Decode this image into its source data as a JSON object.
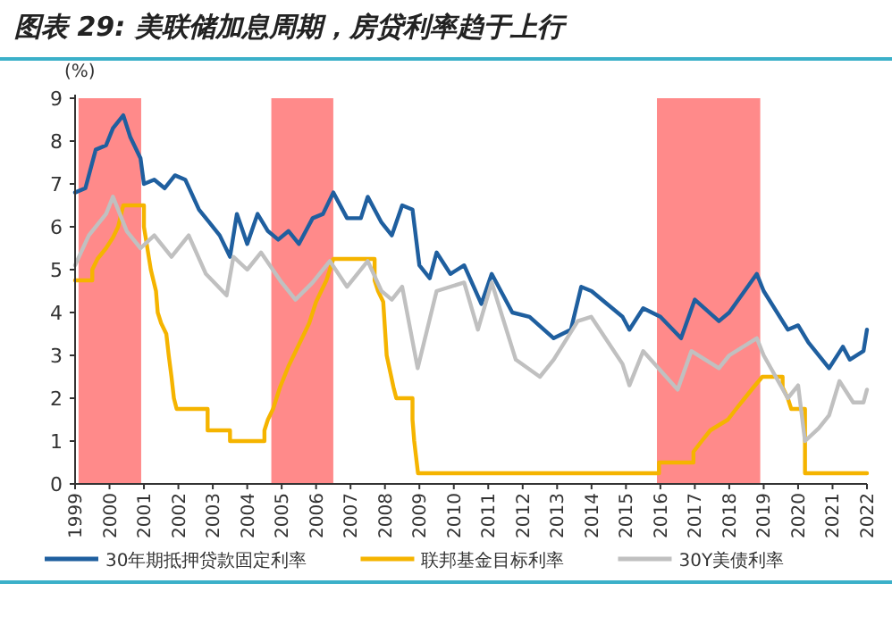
{
  "chart_data": {
    "type": "line",
    "title": "图表 29: 美联储加息周期，房贷利率趋于上行",
    "ylabel": "(%)",
    "xlim": [
      1999,
      2022
    ],
    "xticks": [
      1999,
      2000,
      2001,
      2002,
      2003,
      2004,
      2005,
      2006,
      2007,
      2008,
      2009,
      2010,
      2011,
      2012,
      2013,
      2014,
      2015,
      2016,
      2017,
      2018,
      2019,
      2020,
      2021,
      2022
    ],
    "ylim": [
      0,
      9
    ],
    "yticks": [
      0,
      1,
      2,
      3,
      4,
      5,
      6,
      7,
      8,
      9
    ],
    "grid": false,
    "legend": "bottom",
    "marker": "none",
    "bands": [
      {
        "axis": "x",
        "from": 1999.1,
        "to": 2000.92,
        "color": "#ff8a8a"
      },
      {
        "axis": "x",
        "from": 2004.7,
        "to": 2006.5,
        "color": "#ff8a8a"
      },
      {
        "axis": "x",
        "from": 2015.9,
        "to": 2018.9,
        "color": "#ff8a8a"
      }
    ],
    "series": [
      {
        "name": "30年期抵押贷款固定利率",
        "color": "#1f5f9f",
        "x": [
          1999.0,
          1999.3,
          1999.6,
          1999.9,
          2000.1,
          2000.4,
          2000.6,
          2000.9,
          2001.0,
          2001.3,
          2001.6,
          2001.9,
          2002.2,
          2002.6,
          2002.9,
          2003.2,
          2003.5,
          2003.7,
          2004.0,
          2004.3,
          2004.6,
          2004.9,
          2005.2,
          2005.5,
          2005.9,
          2006.2,
          2006.5,
          2006.9,
          2007.3,
          2007.5,
          2007.9,
          2008.2,
          2008.5,
          2008.8,
          2009.0,
          2009.3,
          2009.5,
          2009.9,
          2010.3,
          2010.8,
          2011.1,
          2011.7,
          2012.2,
          2012.9,
          2013.4,
          2013.7,
          2014.0,
          2014.9,
          2015.1,
          2015.5,
          2016.0,
          2016.6,
          2017.0,
          2017.7,
          2018.0,
          2018.8,
          2019.0,
          2019.7,
          2020.0,
          2020.3,
          2020.9,
          2021.3,
          2021.5,
          2021.9,
          2022.0
        ],
        "values": [
          6.8,
          6.9,
          7.8,
          7.9,
          8.3,
          8.6,
          8.1,
          7.6,
          7.0,
          7.1,
          6.9,
          7.2,
          7.1,
          6.4,
          6.1,
          5.8,
          5.3,
          6.3,
          5.6,
          6.3,
          5.9,
          5.7,
          5.9,
          5.6,
          6.2,
          6.3,
          6.8,
          6.2,
          6.2,
          6.7,
          6.1,
          5.8,
          6.5,
          6.4,
          5.1,
          4.8,
          5.4,
          4.9,
          5.1,
          4.2,
          4.9,
          4.0,
          3.9,
          3.4,
          3.6,
          4.6,
          4.5,
          3.9,
          3.6,
          4.1,
          3.9,
          3.4,
          4.3,
          3.8,
          4.0,
          4.9,
          4.5,
          3.6,
          3.7,
          3.3,
          2.7,
          3.2,
          2.9,
          3.1,
          3.6
        ]
      },
      {
        "name": "联邦基金目标利率",
        "color": "#f5b400",
        "x": [
          1999.0,
          1999.5,
          1999.5,
          1999.65,
          1999.9,
          2000.1,
          2000.25,
          2000.4,
          2001.0,
          2001.0,
          2001.1,
          2001.2,
          2001.35,
          2001.4,
          2001.5,
          2001.65,
          2001.72,
          2001.8,
          2001.87,
          2001.95,
          2002.85,
          2002.85,
          2003.5,
          2003.5,
          2004.5,
          2004.5,
          2004.6,
          2004.75,
          2004.95,
          2005.2,
          2005.5,
          2005.8,
          2006.0,
          2006.3,
          2006.5,
          2007.7,
          2007.7,
          2007.8,
          2007.95,
          2008.05,
          2008.25,
          2008.33,
          2008.8,
          2008.8,
          2008.85,
          2008.96,
          2015.96,
          2015.96,
          2016.96,
          2016.96,
          2017.2,
          2017.45,
          2017.96,
          2018.2,
          2018.45,
          2018.7,
          2018.96,
          2019.55,
          2019.55,
          2019.7,
          2019.8,
          2020.2,
          2020.2,
          2022.0
        ],
        "values": [
          4.75,
          4.75,
          5.0,
          5.25,
          5.5,
          5.75,
          6.0,
          6.5,
          6.5,
          6.0,
          5.5,
          5.0,
          4.5,
          4.0,
          3.75,
          3.5,
          3.0,
          2.5,
          2.0,
          1.75,
          1.75,
          1.25,
          1.25,
          1.0,
          1.0,
          1.25,
          1.5,
          1.75,
          2.25,
          2.75,
          3.25,
          3.75,
          4.25,
          4.75,
          5.25,
          5.25,
          4.75,
          4.5,
          4.25,
          3.0,
          2.25,
          2.0,
          2.0,
          1.5,
          1.0,
          0.25,
          0.25,
          0.5,
          0.5,
          0.75,
          1.0,
          1.25,
          1.5,
          1.75,
          2.0,
          2.25,
          2.5,
          2.5,
          2.25,
          2.0,
          1.75,
          1.75,
          0.25,
          0.25
        ]
      },
      {
        "name": "30Y美债利率",
        "color": "#c0c0c0",
        "x": [
          1999.0,
          1999.4,
          1999.9,
          2000.1,
          2000.5,
          2000.9,
          2001.3,
          2001.8,
          2002.3,
          2002.8,
          2003.4,
          2003.6,
          2004.0,
          2004.4,
          2005.0,
          2005.4,
          2005.9,
          2006.4,
          2006.9,
          2007.5,
          2007.9,
          2008.2,
          2008.5,
          2008.95,
          2009.5,
          2010.3,
          2010.7,
          2011.1,
          2011.8,
          2012.5,
          2012.9,
          2013.6,
          2013.99,
          2014.9,
          2015.1,
          2015.5,
          2016.5,
          2016.9,
          2017.7,
          2018.0,
          2018.8,
          2019.0,
          2019.7,
          2020.0,
          2020.2,
          2020.6,
          2020.9,
          2021.2,
          2021.6,
          2021.9,
          2022.0
        ],
        "values": [
          5.1,
          5.8,
          6.3,
          6.7,
          5.9,
          5.5,
          5.8,
          5.3,
          5.8,
          4.9,
          4.4,
          5.3,
          5.0,
          5.4,
          4.7,
          4.3,
          4.7,
          5.2,
          4.6,
          5.2,
          4.5,
          4.3,
          4.6,
          2.7,
          4.5,
          4.7,
          3.6,
          4.7,
          2.9,
          2.5,
          2.9,
          3.8,
          3.9,
          2.8,
          2.3,
          3.1,
          2.2,
          3.1,
          2.7,
          3.0,
          3.4,
          3.0,
          2.0,
          2.3,
          1.0,
          1.3,
          1.6,
          2.4,
          1.9,
          1.9,
          2.2
        ]
      }
    ]
  }
}
